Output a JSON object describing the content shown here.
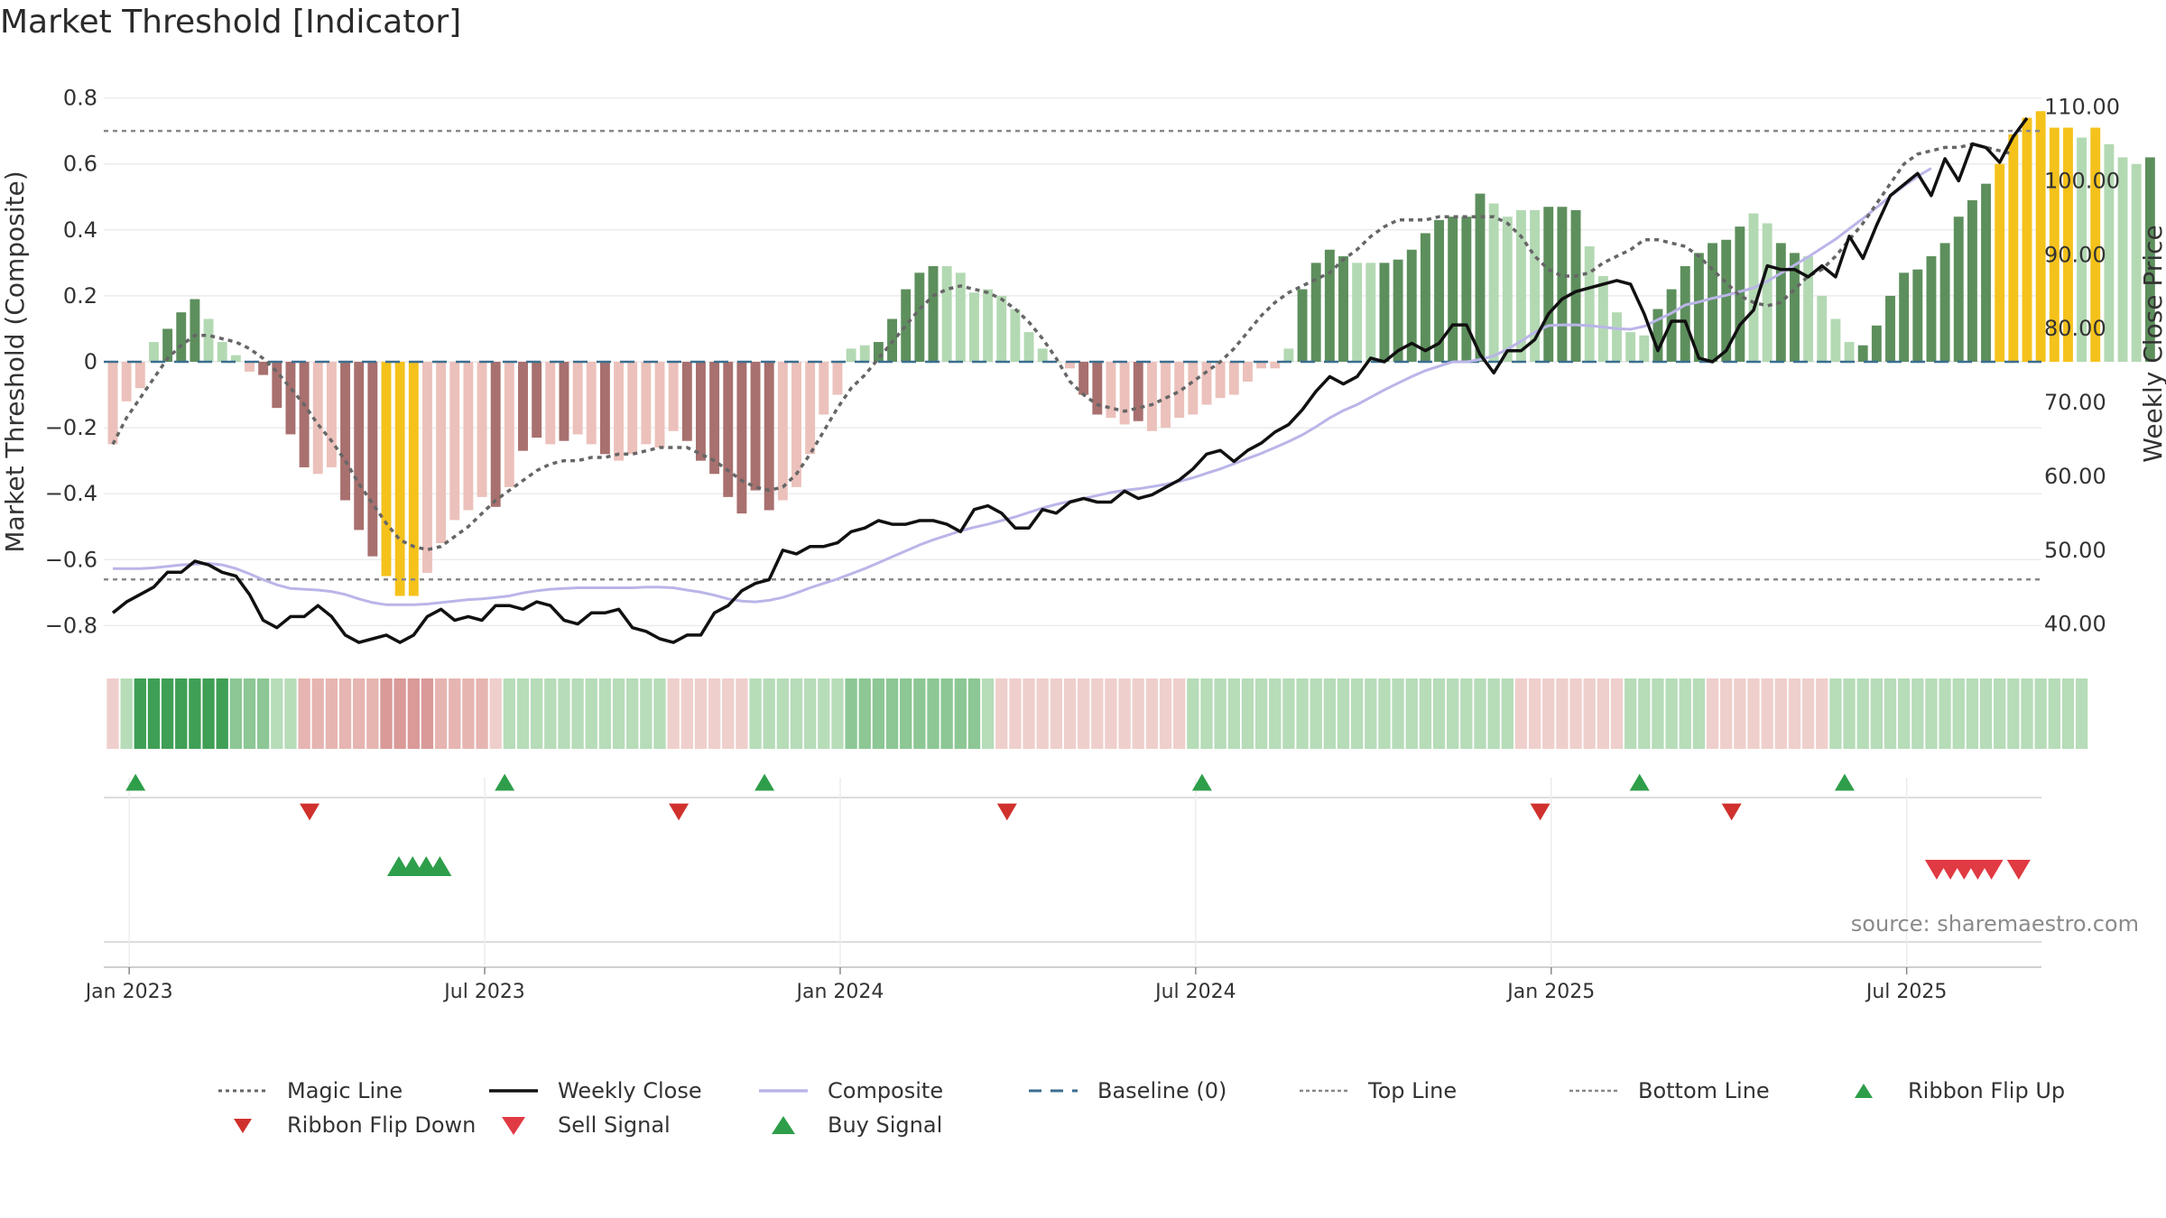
{
  "page": {
    "title": "Market Threshold [Indicator]",
    "source": "source: sharemaestro.com"
  },
  "colors": {
    "pos_strong": "#5d8f5d",
    "pos_weak": "#b3d9b3",
    "neg_strong": "#a8706e",
    "neg_weak": "#ecc1bb",
    "extreme": "#f5c21b",
    "magic_line": "#666666",
    "weekly_close": "#111111",
    "composite": "#bab5e8",
    "baseline": "#3b6e8f",
    "threshold_line": "#888888",
    "flip_up": "#2e9e4a",
    "flip_down": "#d0312d",
    "sell_signal": "#e03a43",
    "buy_signal": "#2e9e4a"
  },
  "legend": [
    {
      "key": "magic",
      "label": "Magic Line",
      "style": "dotted-dark"
    },
    {
      "key": "close",
      "label": "Weekly Close",
      "style": "solid-black"
    },
    {
      "key": "composite",
      "label": "Composite",
      "style": "solid-lavender"
    },
    {
      "key": "baseline",
      "label": "Baseline (0)",
      "style": "dashed-blue"
    },
    {
      "key": "top",
      "label": "Top Line",
      "style": "dotted-grey"
    },
    {
      "key": "bottom",
      "label": "Bottom Line",
      "style": "dotted-grey"
    },
    {
      "key": "flip_up",
      "label": "Ribbon Flip Up",
      "style": "triangle-up-green-small"
    },
    {
      "key": "flip_down",
      "label": "Ribbon Flip Down",
      "style": "triangle-down-red-small"
    },
    {
      "key": "sell",
      "label": "Sell Signal",
      "style": "triangle-down-red"
    },
    {
      "key": "buy",
      "label": "Buy Signal",
      "style": "triangle-up-green"
    }
  ],
  "chart_data": {
    "type": "bar",
    "title": "Market Threshold [Indicator]",
    "x_axis": {
      "label": "",
      "tick_labels": [
        "Jan 2023",
        "Jul 2023",
        "Jan 2024",
        "Jul 2024",
        "Jan 2025",
        "Jul 2025"
      ],
      "tick_positions_week": [
        1,
        27,
        53,
        79,
        105,
        131
      ],
      "range_weeks": [
        0,
        143
      ]
    },
    "y_left": {
      "label": "Market Threshold (Composite)",
      "range": [
        -0.84,
        0.84
      ],
      "ticks": [
        -0.8,
        -0.6,
        -0.4,
        -0.2,
        0,
        0.2,
        0.4,
        0.6,
        0.8
      ],
      "tick_labels": [
        "−0.8",
        "−0.6",
        "−0.4",
        "−0.2",
        "0",
        "0.2",
        "0.4",
        "0.6",
        "0.8"
      ]
    },
    "y_right": {
      "label": "Weekly Close Price",
      "range": [
        38,
        113
      ],
      "ticks": [
        40,
        50,
        60,
        70,
        80,
        90,
        100,
        110
      ],
      "tick_labels": [
        "40.00",
        "50.00",
        "60.00",
        "70.00",
        "80.00",
        "90.00",
        "100.00",
        "110.00"
      ]
    },
    "top_line": 0.7,
    "bottom_line": -0.66,
    "grid": true,
    "legend_position": "bottom",
    "bars": [
      -0.25,
      -0.12,
      -0.08,
      0.06,
      0.1,
      0.15,
      0.19,
      0.13,
      0.06,
      0.02,
      -0.03,
      -0.04,
      -0.14,
      -0.22,
      -0.32,
      -0.34,
      -0.32,
      -0.42,
      -0.51,
      -0.59,
      -0.65,
      -0.71,
      -0.71,
      -0.64,
      -0.55,
      -0.48,
      -0.45,
      -0.41,
      -0.44,
      -0.38,
      -0.27,
      -0.23,
      -0.25,
      -0.24,
      -0.22,
      -0.25,
      -0.28,
      -0.3,
      -0.28,
      -0.25,
      -0.26,
      -0.21,
      -0.24,
      -0.3,
      -0.34,
      -0.41,
      -0.46,
      -0.39,
      -0.45,
      -0.42,
      -0.38,
      -0.28,
      -0.16,
      -0.1,
      0.04,
      0.05,
      0.06,
      0.13,
      0.22,
      0.27,
      0.29,
      0.29,
      0.27,
      0.21,
      0.22,
      0.2,
      0.16,
      0.09,
      0.04,
      0,
      -0.02,
      -0.1,
      -0.16,
      -0.17,
      -0.19,
      -0.18,
      -0.21,
      -0.2,
      -0.17,
      -0.16,
      -0.13,
      -0.11,
      -0.1,
      -0.06,
      -0.02,
      -0.02,
      0.04,
      0.22,
      0.3,
      0.34,
      0.32,
      0.3,
      0.3,
      0.3,
      0.31,
      0.34,
      0.39,
      0.43,
      0.44,
      0.44,
      0.51,
      0.48,
      0.44,
      0.46,
      0.46,
      0.47,
      0.47,
      0.46,
      0.35,
      0.26,
      0.15,
      0.09,
      0.08,
      0.16,
      0.22,
      0.29,
      0.33,
      0.36,
      0.37,
      0.41,
      0.45,
      0.42,
      0.36,
      0.33,
      0.32,
      0.2,
      0.13,
      0.06,
      0.05,
      0.11,
      0.2,
      0.27,
      0.28,
      0.32,
      0.36,
      0.44,
      0.49,
      0.54,
      0.6,
      0.69,
      0.74,
      0.76,
      0.71,
      0.71,
      0.68,
      0.71,
      0.66,
      0.62,
      0.6,
      0.62
    ],
    "bar_intensity": [
      "w",
      "w",
      "w",
      "w",
      "s",
      "s",
      "s",
      "w",
      "w",
      "w",
      "w",
      "s",
      "s",
      "s",
      "s",
      "w",
      "w",
      "s",
      "s",
      "s",
      "x",
      "x",
      "x",
      "w",
      "w",
      "w",
      "w",
      "w",
      "s",
      "w",
      "s",
      "s",
      "w",
      "s",
      "w",
      "w",
      "s",
      "w",
      "w",
      "w",
      "w",
      "w",
      "s",
      "s",
      "s",
      "s",
      "s",
      "s",
      "s",
      "w",
      "w",
      "w",
      "w",
      "w",
      "w",
      "w",
      "s",
      "s",
      "s",
      "s",
      "s",
      "w",
      "w",
      "w",
      "w",
      "w",
      "w",
      "w",
      "w",
      "w",
      "w",
      "s",
      "s",
      "w",
      "w",
      "s",
      "w",
      "w",
      "w",
      "w",
      "w",
      "w",
      "w",
      "w",
      "w",
      "w",
      "w",
      "s",
      "s",
      "s",
      "s",
      "w",
      "w",
      "s",
      "s",
      "s",
      "s",
      "s",
      "s",
      "s",
      "s",
      "w",
      "w",
      "w",
      "w",
      "s",
      "s",
      "s",
      "w",
      "w",
      "w",
      "w",
      "w",
      "s",
      "s",
      "s",
      "s",
      "s",
      "s",
      "s",
      "w",
      "w",
      "s",
      "s",
      "w",
      "w",
      "w",
      "w",
      "s",
      "s",
      "s",
      "s",
      "s",
      "s",
      "s",
      "s",
      "s",
      "s",
      "x",
      "x",
      "x",
      "x",
      "x",
      "x",
      "w",
      "x",
      "w",
      "w",
      "w",
      "s"
    ],
    "magic_line": [
      -0.25,
      -0.17,
      -0.11,
      -0.05,
      0.01,
      0.05,
      0.08,
      0.08,
      0.07,
      0.06,
      0.04,
      0.01,
      -0.03,
      -0.08,
      -0.13,
      -0.19,
      -0.24,
      -0.3,
      -0.37,
      -0.43,
      -0.49,
      -0.54,
      -0.56,
      -0.57,
      -0.56,
      -0.53,
      -0.5,
      -0.46,
      -0.42,
      -0.39,
      -0.36,
      -0.33,
      -0.31,
      -0.3,
      -0.3,
      -0.29,
      -0.29,
      -0.28,
      -0.28,
      -0.27,
      -0.26,
      -0.26,
      -0.26,
      -0.28,
      -0.3,
      -0.33,
      -0.36,
      -0.38,
      -0.39,
      -0.38,
      -0.34,
      -0.28,
      -0.21,
      -0.14,
      -0.08,
      -0.04,
      0.01,
      0.06,
      0.11,
      0.16,
      0.2,
      0.22,
      0.23,
      0.22,
      0.21,
      0.19,
      0.16,
      0.12,
      0.07,
      0.01,
      -0.06,
      -0.1,
      -0.13,
      -0.14,
      -0.15,
      -0.14,
      -0.13,
      -0.11,
      -0.09,
      -0.06,
      -0.03,
      0,
      0.04,
      0.09,
      0.14,
      0.18,
      0.21,
      0.23,
      0.25,
      0.27,
      0.31,
      0.34,
      0.38,
      0.41,
      0.43,
      0.43,
      0.43,
      0.44,
      0.44,
      0.44,
      0.44,
      0.44,
      0.42,
      0.38,
      0.32,
      0.28,
      0.26,
      0.26,
      0.27,
      0.3,
      0.32,
      0.34,
      0.37,
      0.37,
      0.36,
      0.35,
      0.32,
      0.28,
      0.24,
      0.2,
      0.18,
      0.17,
      0.18,
      0.22,
      0.26,
      0.28,
      0.32,
      0.37,
      0.42,
      0.48,
      0.54,
      0.6,
      0.63,
      0.64,
      0.65,
      0.65,
      0.66,
      0.65,
      0.64,
      0.63
    ],
    "weekly_close": [
      41.5,
      43,
      44,
      45,
      47,
      47,
      48.5,
      48,
      47,
      46.5,
      44,
      40.5,
      39.5,
      41,
      41,
      42.5,
      41,
      38.5,
      37.5,
      38,
      38.5,
      37.5,
      38.5,
      41,
      42,
      40.5,
      41,
      40.5,
      42.5,
      42.5,
      42,
      43,
      42.5,
      40.5,
      40,
      41.5,
      41.5,
      42,
      39.5,
      39,
      38,
      37.5,
      38.5,
      38.5,
      41.5,
      42.5,
      44.5,
      45.5,
      46,
      50,
      49.5,
      50.5,
      50.5,
      51,
      52.5,
      53,
      54,
      53.5,
      53.5,
      54,
      54,
      53.5,
      52.5,
      55.5,
      56,
      55,
      53,
      53,
      55.5,
      55,
      56.5,
      57,
      56.5,
      56.5,
      58,
      57,
      57.5,
      58.5,
      59.5,
      61,
      63,
      63.5,
      62,
      63.5,
      64.5,
      66,
      67,
      69,
      71.5,
      73.5,
      72.5,
      73.5,
      76,
      75.5,
      77,
      78,
      77,
      78,
      80.5,
      80.5,
      76.5,
      74,
      77,
      77,
      78.5,
      82,
      84,
      85,
      85.5,
      86,
      86.5,
      86,
      82,
      77,
      81,
      81,
      76,
      75.5,
      77,
      80.5,
      82.5,
      88.5,
      88,
      88,
      87,
      88.5,
      87,
      92.5,
      89.5,
      94,
      98,
      99.5,
      101,
      98,
      103,
      100,
      105,
      104.5,
      102.5,
      106,
      108.5
    ],
    "composite_line": [
      47.5,
      47.5,
      47.5,
      47.6,
      47.8,
      48,
      48.1,
      48.2,
      48,
      47.5,
      46.8,
      46,
      45.3,
      44.8,
      44.7,
      44.6,
      44.4,
      44,
      43.4,
      42.9,
      42.6,
      42.6,
      42.6,
      42.7,
      42.9,
      43.1,
      43.3,
      43.4,
      43.6,
      43.8,
      44.2,
      44.5,
      44.7,
      44.8,
      44.9,
      44.9,
      44.9,
      44.9,
      44.9,
      45,
      45,
      44.9,
      44.6,
      44.3,
      43.9,
      43.4,
      43.1,
      43,
      43.2,
      43.6,
      44.2,
      44.9,
      45.5,
      46.1,
      46.8,
      47.5,
      48.3,
      49.1,
      49.9,
      50.7,
      51.4,
      52,
      52.6,
      53.1,
      53.5,
      54,
      54.5,
      55.1,
      55.7,
      56.2,
      56.6,
      57,
      57.4,
      57.8,
      58.1,
      58.3,
      58.6,
      58.9,
      59.3,
      59.8,
      60.4,
      61,
      61.7,
      62.4,
      63.1,
      63.9,
      64.7,
      65.6,
      66.7,
      67.9,
      68.9,
      69.7,
      70.7,
      71.7,
      72.6,
      73.5,
      74.3,
      74.9,
      75.5,
      75.5,
      75.8,
      76.3,
      77.2,
      78.3,
      79.5,
      80.4,
      80.5,
      80.5,
      80.4,
      80.2,
      80,
      79.9,
      80.3,
      81.2,
      82.1,
      83.2,
      83.6,
      84.1,
      84.5,
      85,
      85.5,
      86.4,
      87.5,
      88.6,
      89.7,
      90.9,
      92.1,
      93.5,
      94.9,
      96.4,
      97.9,
      99.3,
      100.6,
      101.7
    ]
  },
  "signals": {
    "flip_up_weeks": [
      1,
      28,
      47,
      79,
      111,
      126
    ],
    "flip_down_weeks": [
      14,
      41,
      65,
      104,
      118
    ],
    "buy_weeks": [
      20,
      21,
      22,
      23
    ],
    "sell_weeks": [
      133,
      134,
      135,
      136,
      137,
      139
    ]
  },
  "ribbon": {
    "shades": [
      "n1",
      "p1",
      "p3",
      "p3",
      "p3",
      "p3",
      "p3",
      "p3",
      "p3",
      "p2",
      "p2",
      "p2",
      "p1",
      "p1",
      "n2",
      "n2",
      "n2",
      "n2",
      "n2",
      "n2",
      "n3",
      "n3",
      "n3",
      "n3",
      "n2",
      "n2",
      "n2",
      "n2",
      "n1",
      "p1",
      "p1",
      "p1",
      "p1",
      "p1",
      "p1",
      "p1",
      "p1",
      "p1",
      "p1",
      "p1",
      "p1",
      "n1",
      "n1",
      "n1",
      "n1",
      "n1",
      "n1",
      "p1",
      "p1",
      "p1",
      "p1",
      "p1",
      "p1",
      "p1",
      "p2",
      "p2",
      "p2",
      "p2",
      "p2",
      "p2",
      "p2",
      "p2",
      "p2",
      "p2",
      "p1",
      "n1",
      "n1",
      "n1",
      "n1",
      "n1",
      "n1",
      "n1",
      "n1",
      "n1",
      "n1",
      "n1",
      "n1",
      "n1",
      "n1",
      "p1",
      "p1",
      "p1",
      "p1",
      "p1",
      "p1",
      "p1",
      "p1",
      "p1",
      "p1",
      "p1",
      "p1",
      "p1",
      "p1",
      "p1",
      "p1",
      "p1",
      "p1",
      "p1",
      "p1",
      "p1",
      "p1",
      "p1",
      "p1",
      "n1",
      "n1",
      "n1",
      "n1",
      "n1",
      "n1",
      "n1",
      "n1",
      "p1",
      "p1",
      "p1",
      "p1",
      "p1",
      "p1",
      "n1",
      "n1",
      "n1",
      "n1",
      "n1",
      "n1",
      "n1",
      "n1",
      "n1",
      "p1",
      "p1",
      "p1",
      "p1",
      "p1",
      "p1",
      "p1",
      "p1",
      "p1",
      "p1",
      "p1",
      "p1",
      "p1",
      "p1",
      "p1",
      "p1",
      "p1",
      "p1",
      "p1"
    ]
  }
}
